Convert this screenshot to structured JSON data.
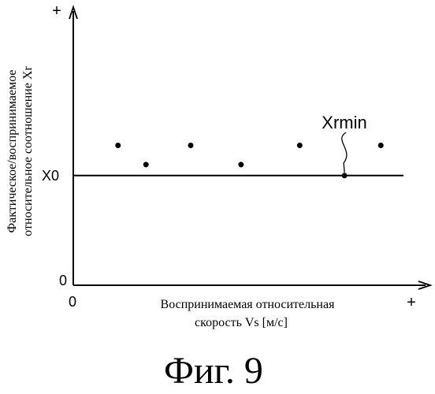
{
  "chart_data": {
    "type": "scatter",
    "ylabel_lines": [
      "Фактическое/воспринимаемое",
      "относительное соотношение Xr"
    ],
    "xlabel_lines": [
      "Воспринимаемая относительная",
      "скорость Vs [м/с]"
    ],
    "axis_labels": {
      "origin_x": "0",
      "origin_y": "0",
      "x_plus": "+",
      "y_plus": "+",
      "x0": "X0"
    },
    "reference_line_label": "X0",
    "annotation": "Xrmin",
    "xlim": [
      0,
      12.6
    ],
    "ylim": [
      0,
      5
    ],
    "x0_value": 2.0,
    "points": [
      {
        "x": 1.6,
        "y": 2.55
      },
      {
        "x": 2.6,
        "y": 2.2
      },
      {
        "x": 4.2,
        "y": 2.55
      },
      {
        "x": 6.0,
        "y": 2.2
      },
      {
        "x": 8.1,
        "y": 2.55
      },
      {
        "x": 9.7,
        "y": 2.0
      },
      {
        "x": 11.0,
        "y": 2.55
      }
    ],
    "annotated_point_index": 5
  },
  "caption": "Фиг. 9"
}
